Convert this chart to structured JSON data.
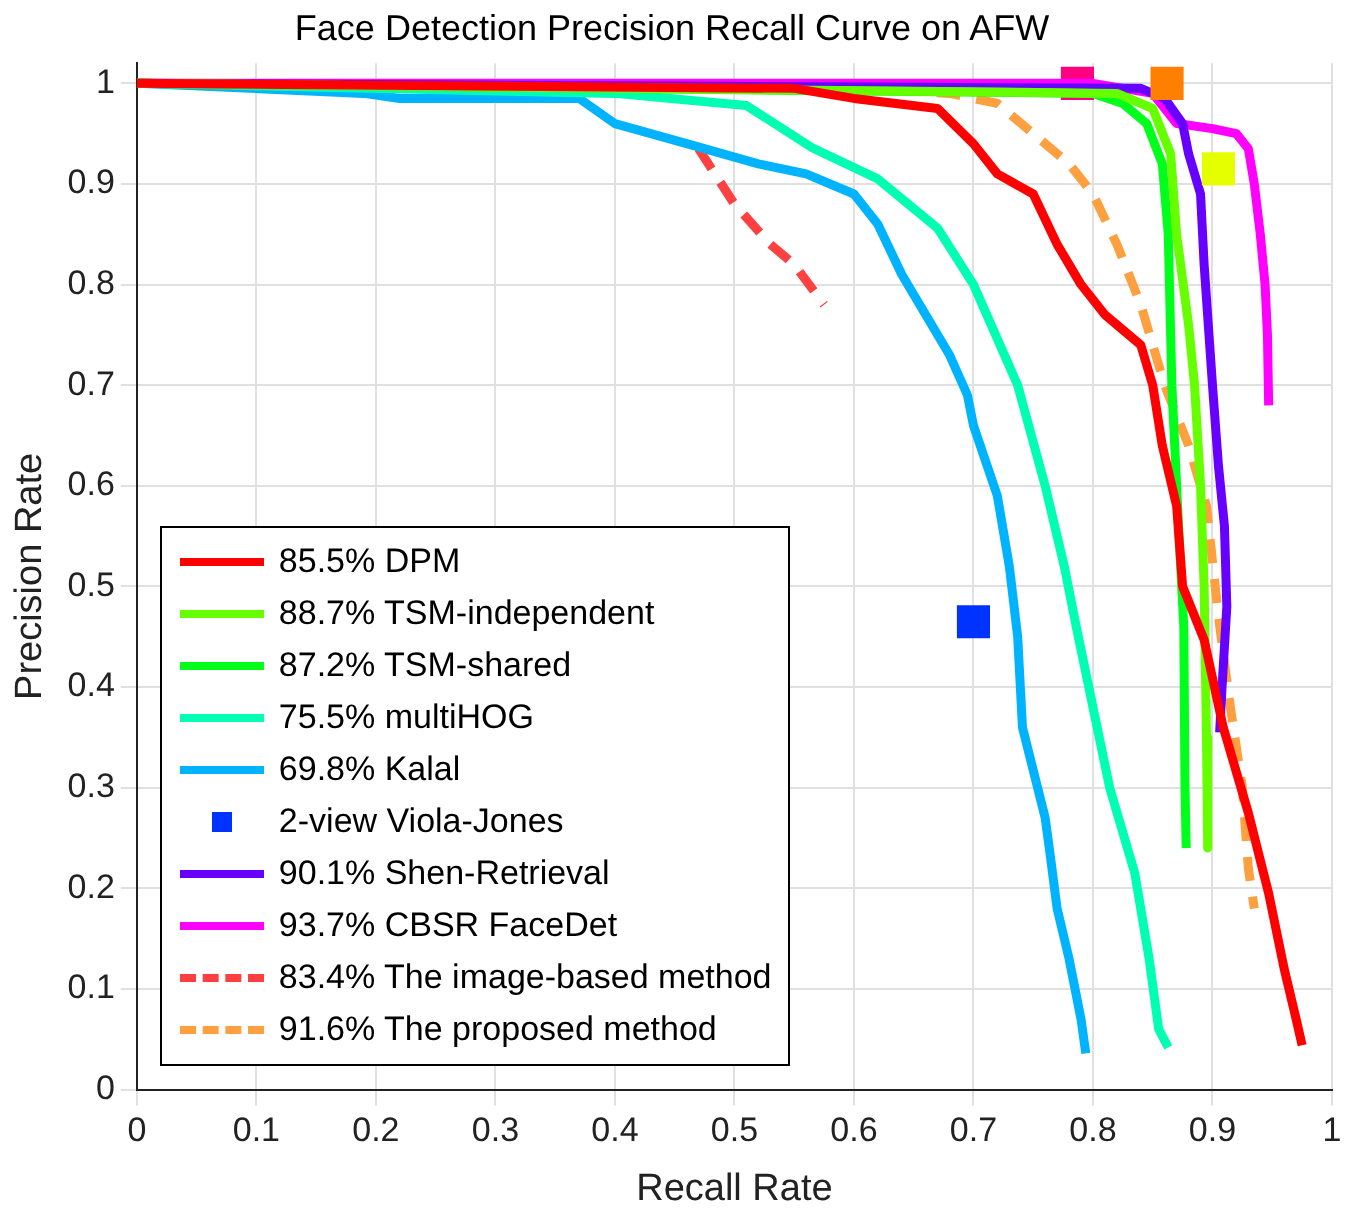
{
  "chart_data": {
    "type": "line",
    "title": "Face Detection Precision Recall Curve on AFW",
    "xlabel": "Recall Rate",
    "ylabel": "Precision Rate",
    "xlim": [
      0,
      1
    ],
    "ylim": [
      0,
      1.02
    ],
    "xticks": [
      0,
      0.1,
      0.2,
      0.3,
      0.4,
      0.5,
      0.6,
      0.7,
      0.8,
      0.9,
      1
    ],
    "yticks": [
      0,
      0.1,
      0.2,
      0.3,
      0.4,
      0.5,
      0.6,
      0.7,
      0.8,
      0.9,
      1
    ],
    "grid": true,
    "legend": "bottom left",
    "series": [
      {
        "name": "85.5% DPM",
        "color": "#ff0000",
        "type": "line",
        "line_style": "solid",
        "x": [
          0,
          0.55,
          0.6,
          0.67,
          0.7,
          0.72,
          0.75,
          0.77,
          0.79,
          0.81,
          0.84,
          0.85,
          0.858,
          0.87,
          0.875,
          0.893,
          0.909,
          0.93,
          0.947,
          0.96,
          0.97,
          0.975
        ],
        "values": [
          1,
          0.995,
          0.985,
          0.975,
          0.94,
          0.91,
          0.89,
          0.84,
          0.8,
          0.77,
          0.74,
          0.7,
          0.64,
          0.58,
          0.5,
          0.447,
          0.36,
          0.275,
          0.195,
          0.12,
          0.07,
          0.044
        ]
      },
      {
        "color": "#ff8000",
        "type": "scatter",
        "marker": "square",
        "x": [
          0.862
        ],
        "values": [
          1
        ]
      },
      {
        "color": "#e6ff00",
        "type": "scatter",
        "marker": "square",
        "x": [
          0.905
        ],
        "values": [
          0.915
        ]
      },
      {
        "name": "88.7% TSM-independent",
        "color": "#66ff00",
        "type": "line",
        "line_style": "solid",
        "x": [
          0,
          0.82,
          0.85,
          0.865,
          0.87,
          0.88,
          0.885,
          0.89,
          0.893,
          0.895,
          0.896
        ],
        "values": [
          1,
          0.99,
          0.975,
          0.93,
          0.85,
          0.76,
          0.7,
          0.6,
          0.5,
          0.35,
          0.24
        ]
      },
      {
        "name": "87.2% TSM-shared",
        "color": "#00ff1a",
        "type": "line",
        "line_style": "solid",
        "x": [
          0,
          0.8,
          0.825,
          0.845,
          0.858,
          0.863,
          0.866,
          0.872,
          0.876,
          0.877,
          0.878
        ],
        "values": [
          1,
          0.99,
          0.98,
          0.96,
          0.92,
          0.85,
          0.7,
          0.55,
          0.46,
          0.3,
          0.24
        ]
      },
      {
        "name": "75.5% multiHOG",
        "color": "#00ffb3",
        "type": "line",
        "line_style": "solid",
        "x": [
          0,
          0.4,
          0.51,
          0.565,
          0.62,
          0.67,
          0.7,
          0.737,
          0.76,
          0.776,
          0.786,
          0.8,
          0.814,
          0.835,
          0.847,
          0.855,
          0.863
        ],
        "values": [
          1,
          0.99,
          0.978,
          0.936,
          0.905,
          0.856,
          0.8,
          0.7,
          0.6,
          0.52,
          0.46,
          0.38,
          0.3,
          0.215,
          0.13,
          0.06,
          0.042
        ]
      },
      {
        "name": "69.8% Kalal",
        "color": "#00b3ff",
        "type": "line",
        "line_style": "solid",
        "x": [
          0,
          0.19,
          0.22,
          0.37,
          0.4,
          0.46,
          0.52,
          0.56,
          0.6,
          0.62,
          0.64,
          0.66,
          0.68,
          0.695,
          0.7,
          0.72,
          0.73,
          0.737,
          0.741,
          0.76,
          0.764,
          0.77,
          0.78,
          0.79,
          0.794
        ],
        "values": [
          1,
          0.99,
          0.985,
          0.985,
          0.96,
          0.94,
          0.92,
          0.91,
          0.89,
          0.86,
          0.81,
          0.77,
          0.73,
          0.69,
          0.66,
          0.59,
          0.52,
          0.45,
          0.36,
          0.27,
          0.235,
          0.18,
          0.13,
          0.07,
          0.036
        ]
      },
      {
        "name": "2-view Viola-Jones",
        "color": "#0033ff",
        "type": "scatter",
        "marker": "square",
        "x": [
          0.7
        ],
        "values": [
          0.465
        ]
      },
      {
        "name": "90.1% Shen-Retrieval",
        "color": "#6600ff",
        "type": "line",
        "line_style": "solid",
        "x": [
          0,
          0.84,
          0.86,
          0.875,
          0.88,
          0.89,
          0.893,
          0.9,
          0.905,
          0.91,
          0.912,
          0.908,
          0.906
        ],
        "values": [
          1,
          0.995,
          0.985,
          0.96,
          0.93,
          0.89,
          0.82,
          0.7,
          0.62,
          0.56,
          0.48,
          0.4,
          0.355
        ]
      },
      {
        "name": "93.7% CBSR FaceDet",
        "color": "#ff00ff",
        "type": "line",
        "line_style": "solid",
        "x": [
          0,
          0.8,
          0.85,
          0.87,
          0.9,
          0.92,
          0.93,
          0.935,
          0.94,
          0.944,
          0.946,
          0.947
        ],
        "values": [
          1,
          1,
          0.99,
          0.96,
          0.955,
          0.95,
          0.935,
          0.9,
          0.85,
          0.8,
          0.75,
          0.68
        ]
      },
      {
        "color": "#ff0080",
        "type": "scatter",
        "marker": "square",
        "x": [
          0.787
        ],
        "values": [
          1
        ]
      },
      {
        "name": "83.4% The image-based method",
        "color": "#ff4040",
        "type": "line",
        "line_style": "dashed",
        "x": [
          0.47,
          0.5,
          0.53,
          0.55,
          0.575
        ],
        "values": [
          0.935,
          0.88,
          0.84,
          0.82,
          0.78
        ]
      },
      {
        "name": "91.6% The proposed method",
        "color": "#ffa040",
        "type": "line",
        "line_style": "dashed",
        "x": [
          0,
          0.6,
          0.68,
          0.72,
          0.75,
          0.78,
          0.8,
          0.82,
          0.84,
          0.86,
          0.88,
          0.895,
          0.905,
          0.915,
          0.925,
          0.93,
          0.935
        ],
        "values": [
          1,
          0.995,
          0.99,
          0.98,
          0.95,
          0.92,
          0.89,
          0.84,
          0.78,
          0.7,
          0.64,
          0.58,
          0.47,
          0.38,
          0.3,
          0.22,
          0.18
        ]
      }
    ]
  }
}
